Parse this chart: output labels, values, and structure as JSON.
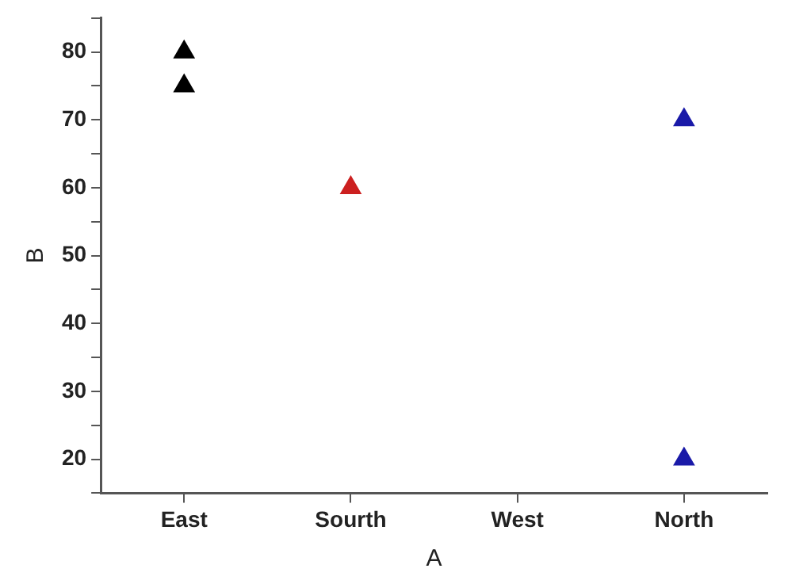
{
  "chart_data": {
    "type": "scatter",
    "xlabel": "A",
    "ylabel": "B",
    "categories": [
      "East",
      "Sourth",
      "West",
      "North"
    ],
    "series": [
      {
        "color": "#000000",
        "x": [
          "East",
          "East"
        ],
        "values": [
          80,
          75
        ]
      },
      {
        "color": "#cc2020",
        "x": [
          "Sourth"
        ],
        "values": [
          60
        ]
      },
      {
        "color": "#1a1aa8",
        "x": [
          "North",
          "North"
        ],
        "values": [
          70,
          20
        ]
      }
    ],
    "ylim": [
      15,
      85
    ],
    "yticks": [
      {
        "value": 15,
        "label": null
      },
      20,
      {
        "value": 25,
        "label": null
      },
      30,
      {
        "value": 35,
        "label": null
      },
      40,
      {
        "value": 45,
        "label": null
      },
      50,
      {
        "value": 55,
        "label": null
      },
      60,
      {
        "value": 65,
        "label": null
      },
      70,
      {
        "value": 75,
        "label": null
      },
      80,
      {
        "value": 85,
        "label": null
      }
    ],
    "marker": "triangle",
    "grid": false,
    "legend": false
  }
}
